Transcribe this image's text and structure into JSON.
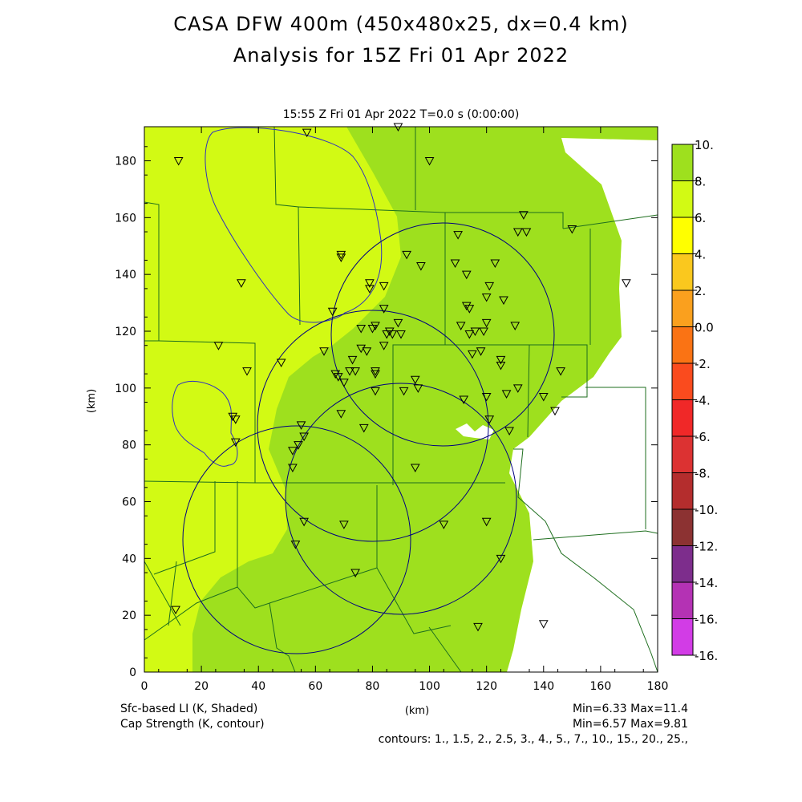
{
  "title_line1": "CASA DFW 400m (450x480x25, dx=0.4 km)",
  "title_line2": "Analysis for 15Z Fri 01 Apr 2022",
  "subtitle": "15:55 Z Fri 01 Apr 2022    T=0.0 s (0:00:00)",
  "axis": {
    "x_label": "(km)",
    "y_label": "(km)",
    "x_ticks": [
      "0",
      "20",
      "40",
      "60",
      "80",
      "100",
      "120",
      "140",
      "160",
      "180"
    ],
    "y_ticks": [
      "0",
      "20",
      "40",
      "60",
      "80",
      "100",
      "120",
      "140",
      "160",
      "180"
    ],
    "xlim": [
      0,
      180
    ],
    "ylim": [
      0,
      192
    ]
  },
  "colorbar": {
    "labels": [
      "10.",
      "8.",
      "6.",
      "4.",
      "2.",
      "0.0",
      "-2.",
      "-4.",
      "-6.",
      "-8.",
      "-10.",
      "-12.",
      "-14.",
      "-16."
    ],
    "colors": [
      "#9ee01e",
      "#d2fa14",
      "#ffff00",
      "#fac81e",
      "#faa01e",
      "#fa7314",
      "#fa4b1e",
      "#f02828",
      "#dc3232",
      "#b42d2d",
      "#8c3232",
      "#7d2d8c",
      "#b432b4",
      "#d23ce6"
    ]
  },
  "footer": {
    "shaded_label": "Sfc-based LI (K, Shaded)",
    "contour_label": "Cap Strength (K, contour)",
    "x_unit": "(km)",
    "shaded_stats": "Min=6.33 Max=11.4",
    "contour_stats": "Min=6.57 Max=9.81",
    "contours": "contours: 1., 1.5, 2., 2.5, 3., 4., 5., 7., 10., 15., 20., 25.,"
  },
  "fill_colors": {
    "region_6_8": "#d2fa14",
    "region_8_10": "#9ee01e",
    "no_data": "#ffffff",
    "contour": "#3030c0",
    "county_lines": "#1e6e1e",
    "radar_rings": "#000080"
  }
}
